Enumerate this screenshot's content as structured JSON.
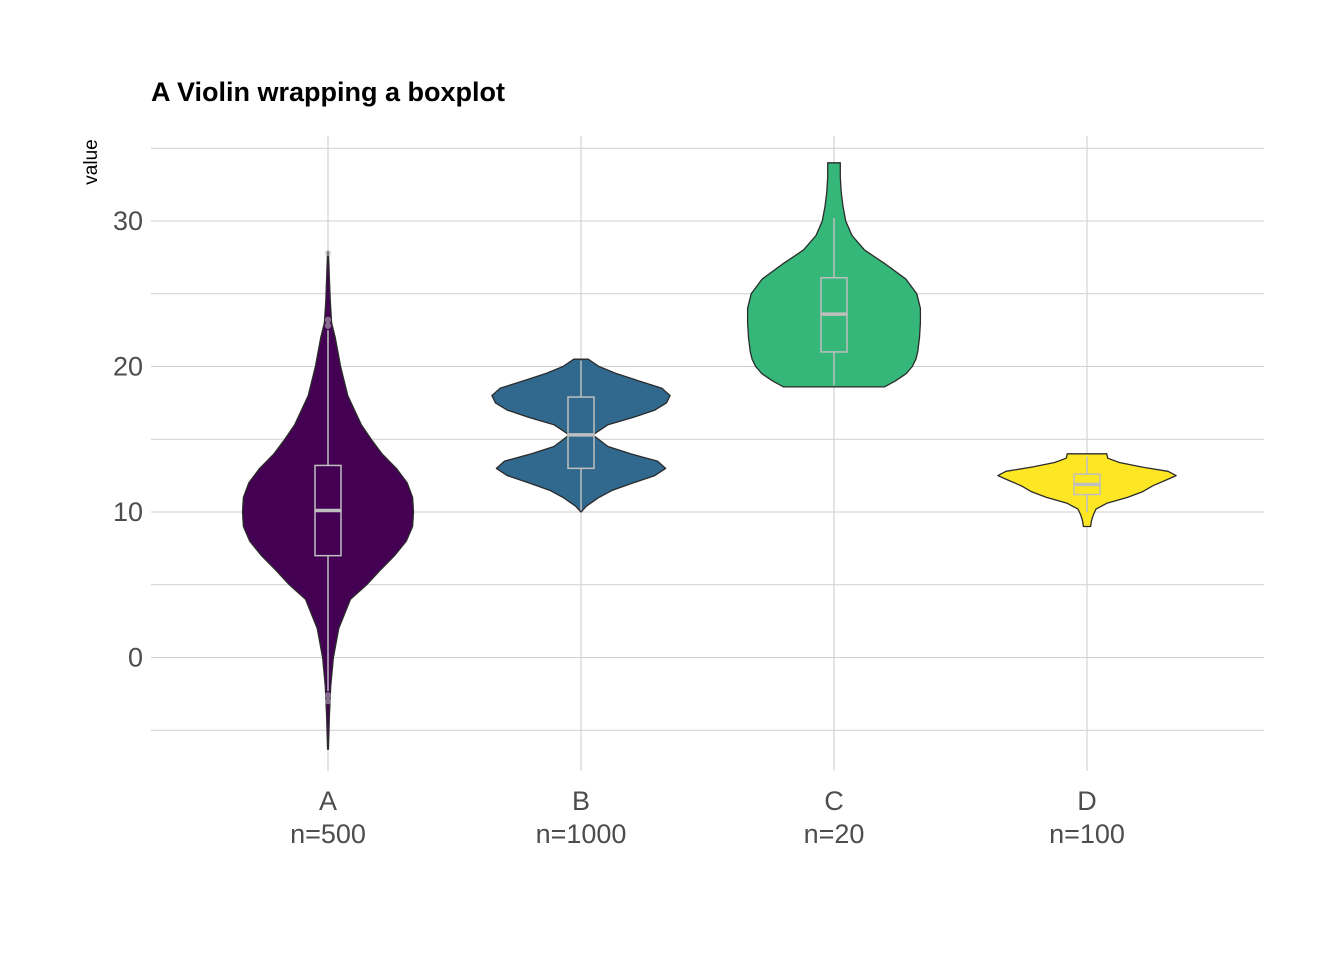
{
  "chart_data": {
    "type": "violin",
    "title": "A Violin wrapping a boxplot",
    "xlabel": "",
    "ylabel": "value",
    "ylim": [
      -6.5,
      35.5
    ],
    "y_ticks": [
      0,
      10,
      20,
      30
    ],
    "grid": true,
    "legend": "none",
    "groups": [
      {
        "category": "A",
        "count_label": "n=500",
        "color": "#440154",
        "outline": "#2b2b2b",
        "range": [
          -6.3,
          27.9
        ],
        "box": {
          "q1": 7.0,
          "median": 10.1,
          "q3": 13.2,
          "whisker_low": -2.3,
          "whisker_high": 22.5
        },
        "outliers": [
          -2.6,
          -3.0,
          22.8,
          23.2,
          27.8
        ],
        "density": [
          [
            -6.3,
            0.005
          ],
          [
            -4,
            0.015
          ],
          [
            -2,
            0.03
          ],
          [
            0,
            0.06
          ],
          [
            2,
            0.12
          ],
          [
            4,
            0.25
          ],
          [
            5,
            0.43
          ],
          [
            6,
            0.58
          ],
          [
            7,
            0.74
          ],
          [
            8,
            0.87
          ],
          [
            9,
            0.94
          ],
          [
            10,
            0.95
          ],
          [
            11,
            0.94
          ],
          [
            12,
            0.88
          ],
          [
            13,
            0.76
          ],
          [
            14,
            0.6
          ],
          [
            15,
            0.48
          ],
          [
            16,
            0.37
          ],
          [
            18,
            0.22
          ],
          [
            20,
            0.14
          ],
          [
            22,
            0.08
          ],
          [
            23,
            0.04
          ],
          [
            24.5,
            0.025
          ],
          [
            26,
            0.015
          ],
          [
            27.9,
            0.005
          ]
        ]
      },
      {
        "category": "B",
        "count_label": "n=1000",
        "color": "#31688e",
        "outline": "#2b2b2b",
        "range": [
          10.0,
          20.5
        ],
        "box": {
          "q1": 13.0,
          "median": 15.3,
          "q3": 17.9,
          "whisker_low": 10.1,
          "whisker_high": 20.4
        },
        "outliers": [],
        "density": [
          [
            10.0,
            0.0
          ],
          [
            10.4,
            0.06
          ],
          [
            11.0,
            0.2
          ],
          [
            11.5,
            0.35
          ],
          [
            12.0,
            0.58
          ],
          [
            12.5,
            0.82
          ],
          [
            13.0,
            0.94
          ],
          [
            13.5,
            0.85
          ],
          [
            14.0,
            0.55
          ],
          [
            14.5,
            0.3
          ],
          [
            15.3,
            0.13
          ],
          [
            16.0,
            0.3
          ],
          [
            16.5,
            0.58
          ],
          [
            17.0,
            0.82
          ],
          [
            17.5,
            0.95
          ],
          [
            18.0,
            0.99
          ],
          [
            18.5,
            0.9
          ],
          [
            19.0,
            0.65
          ],
          [
            19.5,
            0.4
          ],
          [
            20.0,
            0.2
          ],
          [
            20.5,
            0.08
          ]
        ]
      },
      {
        "category": "C",
        "count_label": "n=20",
        "color": "#35b779",
        "outline": "#2b2b2b",
        "range": [
          18.6,
          34.0
        ],
        "box": {
          "q1": 21.0,
          "median": 23.6,
          "q3": 26.1,
          "whisker_low": 18.7,
          "whisker_high": 30.2
        },
        "outliers": [],
        "density": [
          [
            18.6,
            0.56
          ],
          [
            19.0,
            0.68
          ],
          [
            19.5,
            0.8
          ],
          [
            20.0,
            0.87
          ],
          [
            20.5,
            0.91
          ],
          [
            21.0,
            0.93
          ],
          [
            22.0,
            0.95
          ],
          [
            23.0,
            0.96
          ],
          [
            24.0,
            0.96
          ],
          [
            25.0,
            0.92
          ],
          [
            26.0,
            0.8
          ],
          [
            27.0,
            0.58
          ],
          [
            28.0,
            0.34
          ],
          [
            29.0,
            0.2
          ],
          [
            30.0,
            0.13
          ],
          [
            31.0,
            0.1
          ],
          [
            32.0,
            0.08
          ],
          [
            33.0,
            0.07
          ],
          [
            34.0,
            0.07
          ]
        ]
      },
      {
        "category": "D",
        "count_label": "n=100",
        "color": "#fde725",
        "outline": "#2b2b2b",
        "range": [
          9.0,
          14.0
        ],
        "box": {
          "q1": 11.2,
          "median": 11.9,
          "q3": 12.6,
          "whisker_low": 10.0,
          "whisker_high": 13.8
        },
        "outliers": [],
        "density": [
          [
            9.0,
            0.04
          ],
          [
            9.4,
            0.05
          ],
          [
            9.8,
            0.07
          ],
          [
            10.2,
            0.1
          ],
          [
            10.6,
            0.22
          ],
          [
            11.0,
            0.45
          ],
          [
            11.4,
            0.62
          ],
          [
            11.8,
            0.73
          ],
          [
            12.2,
            0.88
          ],
          [
            12.5,
            0.99
          ],
          [
            12.8,
            0.9
          ],
          [
            13.1,
            0.6
          ],
          [
            13.4,
            0.36
          ],
          [
            13.7,
            0.23
          ],
          [
            14.0,
            0.22
          ]
        ]
      }
    ]
  }
}
